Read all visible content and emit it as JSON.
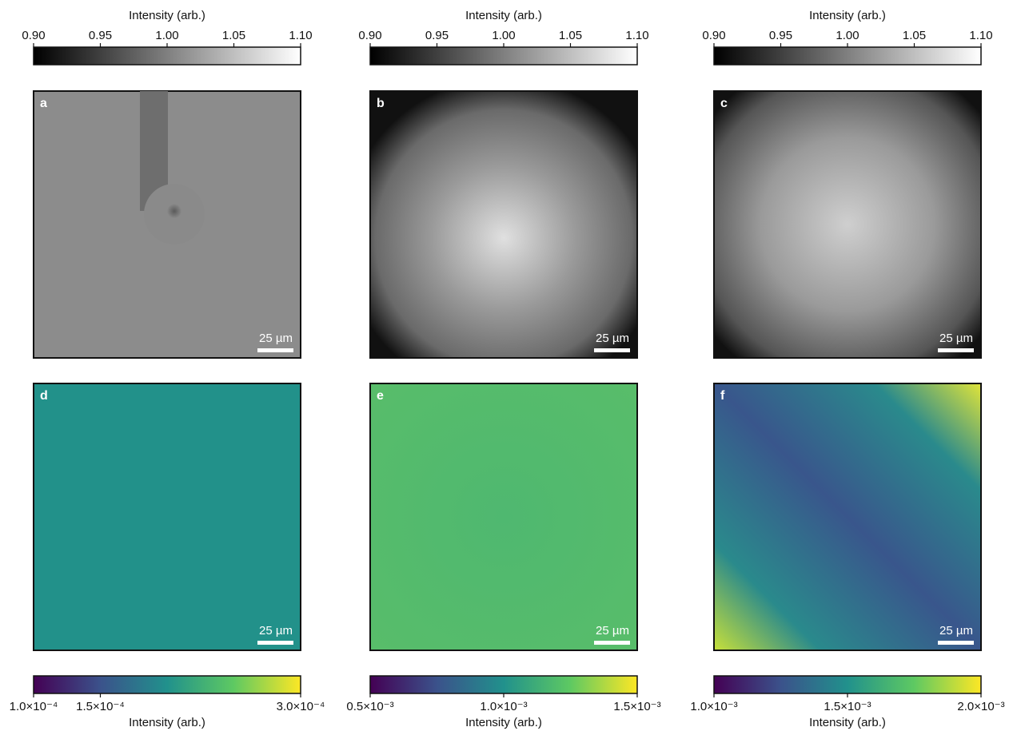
{
  "colorbars": [
    {
      "label": "Intensity (arb.)",
      "colormap": "gray",
      "lim": [
        0.9,
        1.1
      ],
      "ticks": [
        {
          "value": 0.9,
          "label": "0.90"
        },
        {
          "value": 0.95,
          "label": "0.95"
        },
        {
          "value": 1.0,
          "label": "1.00"
        },
        {
          "value": 1.05,
          "label": "1.05"
        },
        {
          "value": 1.1,
          "label": "1.10"
        }
      ]
    },
    {
      "label": "Intensity (arb.)",
      "colormap": "gray",
      "lim": [
        0.9,
        1.1
      ],
      "ticks": [
        {
          "value": 0.9,
          "label": "0.90"
        },
        {
          "value": 0.95,
          "label": "0.95"
        },
        {
          "value": 1.0,
          "label": "1.00"
        },
        {
          "value": 1.05,
          "label": "1.05"
        },
        {
          "value": 1.1,
          "label": "1.10"
        }
      ]
    },
    {
      "label": "Intensity (arb.)",
      "colormap": "gray",
      "lim": [
        0.9,
        1.1
      ],
      "ticks": [
        {
          "value": 0.9,
          "label": "0.90"
        },
        {
          "value": 0.95,
          "label": "0.95"
        },
        {
          "value": 1.0,
          "label": "1.00"
        },
        {
          "value": 1.05,
          "label": "1.05"
        },
        {
          "value": 1.1,
          "label": "1.10"
        }
      ]
    },
    {
      "label": "Intensity (arb.)",
      "colormap": "viridis",
      "lim": [
        0.0001,
        0.0003
      ],
      "ticks": [
        {
          "value": 0.0001,
          "label": "1.0×10⁻⁴"
        },
        {
          "value": 0.00015,
          "label": "1.5×10⁻⁴"
        },
        {
          "value": 0.0003,
          "label": "3.0×10⁻⁴"
        }
      ]
    },
    {
      "label": "Intensity (arb.)",
      "colormap": "viridis",
      "lim": [
        0.0005,
        0.0015
      ],
      "ticks": [
        {
          "value": 0.0005,
          "label": "0.5×10⁻³"
        },
        {
          "value": 0.001,
          "label": "1.0×10⁻³"
        },
        {
          "value": 0.0015,
          "label": "1.5×10⁻³"
        }
      ]
    },
    {
      "label": "Intensity (arb.)",
      "colormap": "viridis",
      "lim": [
        0.001,
        0.002
      ],
      "ticks": [
        {
          "value": 0.001,
          "label": "1.0×10⁻³"
        },
        {
          "value": 0.0015,
          "label": "1.5×10⁻³"
        },
        {
          "value": 0.002,
          "label": "2.0×10⁻³"
        }
      ]
    }
  ],
  "panels": [
    {
      "letter": "a",
      "scale_bar": "25 µm"
    },
    {
      "letter": "b",
      "scale_bar": "25 µm"
    },
    {
      "letter": "c",
      "scale_bar": "25 µm"
    },
    {
      "letter": "d",
      "scale_bar": "25 µm"
    },
    {
      "letter": "e",
      "scale_bar": "25 µm"
    },
    {
      "letter": "f",
      "scale_bar": "25 µm"
    }
  ]
}
